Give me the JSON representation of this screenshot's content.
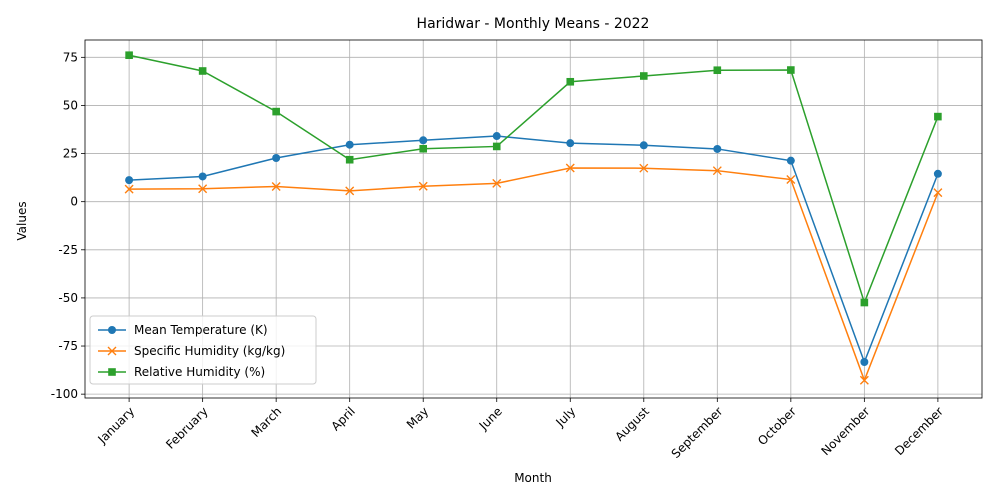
{
  "chart_data": {
    "type": "line",
    "title": "Haridwar - Monthly Means - 2022",
    "xlabel": "Month",
    "ylabel": "Values",
    "categories": [
      "January",
      "February",
      "March",
      "April",
      "May",
      "June",
      "July",
      "August",
      "September",
      "October",
      "November",
      "December"
    ],
    "ylim": [
      -102,
      84
    ],
    "yticks": [
      -100,
      -75,
      -50,
      -25,
      0,
      25,
      50,
      75
    ],
    "grid": true,
    "legend_position": "lower-left",
    "x_tick_rotation": 45,
    "series": [
      {
        "name": "Mean Temperature (K)",
        "color": "#1f77b4",
        "marker": "circle",
        "values": [
          11.2,
          13.1,
          22.7,
          29.6,
          31.9,
          34.1,
          30.4,
          29.3,
          27.4,
          21.3,
          -83.3,
          14.5
        ]
      },
      {
        "name": "Specific Humidity (kg/kg)",
        "color": "#ff7f0e",
        "marker": "x",
        "values": [
          6.5,
          6.7,
          7.9,
          5.6,
          8.0,
          9.5,
          17.5,
          17.4,
          16.1,
          11.5,
          -92.8,
          4.7
        ]
      },
      {
        "name": "Relative Humidity (%)",
        "color": "#2ca02c",
        "marker": "square",
        "values": [
          76.1,
          67.9,
          46.8,
          21.8,
          27.5,
          28.7,
          62.3,
          65.3,
          68.3,
          68.4,
          -52.4,
          44.2
        ]
      }
    ]
  }
}
